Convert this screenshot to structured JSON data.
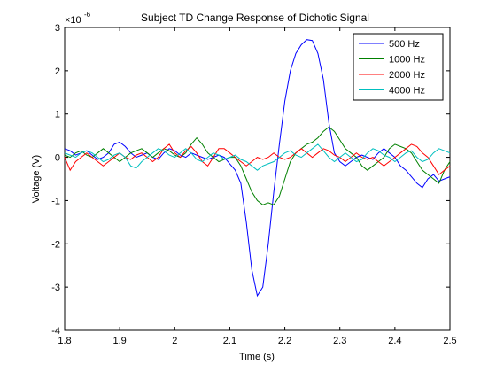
{
  "chart_data": {
    "type": "line",
    "title": "Subject TD Change Response of Dichotic Signal",
    "xlabel": "Time (s)",
    "ylabel": "Voltage (V)",
    "y_exponent_base": "×10",
    "y_exponent_power": "-6",
    "xlim": [
      1.8,
      2.5
    ],
    "ylim": [
      -4,
      3
    ],
    "xticks": [
      1.8,
      1.9,
      2.0,
      2.1,
      2.2,
      2.3,
      2.4,
      2.5
    ],
    "xtick_labels": [
      "1.8",
      "1.9",
      "2",
      "2.1",
      "2.2",
      "2.3",
      "2.4",
      "2.5"
    ],
    "yticks": [
      -4,
      -3,
      -2,
      -1,
      0,
      1,
      2,
      3
    ],
    "ytick_labels": [
      "-4",
      "-3",
      "-2",
      "-1",
      "0",
      "1",
      "2",
      "3"
    ],
    "grid": false,
    "legend_position": "top-right",
    "series": [
      {
        "name": "500 Hz",
        "color": "#0000ff",
        "x": [
          1.8,
          1.81,
          1.82,
          1.83,
          1.84,
          1.85,
          1.86,
          1.87,
          1.88,
          1.89,
          1.9,
          1.91,
          1.92,
          1.93,
          1.94,
          1.95,
          1.96,
          1.97,
          1.98,
          1.99,
          2.0,
          2.01,
          2.02,
          2.03,
          2.04,
          2.05,
          2.06,
          2.07,
          2.08,
          2.09,
          2.1,
          2.11,
          2.12,
          2.13,
          2.14,
          2.15,
          2.16,
          2.17,
          2.18,
          2.19,
          2.2,
          2.21,
          2.22,
          2.23,
          2.24,
          2.25,
          2.26,
          2.27,
          2.28,
          2.29,
          2.3,
          2.31,
          2.32,
          2.33,
          2.34,
          2.35,
          2.36,
          2.37,
          2.38,
          2.39,
          2.4,
          2.41,
          2.42,
          2.43,
          2.44,
          2.45,
          2.46,
          2.47,
          2.48,
          2.49,
          2.5
        ],
        "y": [
          0.2,
          0.15,
          0.05,
          0.1,
          0.15,
          0.05,
          -0.05,
          0.0,
          0.1,
          0.3,
          0.35,
          0.25,
          0.1,
          0.0,
          0.05,
          0.1,
          0.0,
          -0.05,
          0.1,
          0.2,
          0.15,
          0.05,
          0.0,
          0.1,
          0.05,
          0.0,
          -0.05,
          0.0,
          0.05,
          0.0,
          -0.15,
          -0.3,
          -0.6,
          -1.5,
          -2.6,
          -3.2,
          -3.0,
          -2.0,
          -0.8,
          0.3,
          1.3,
          2.0,
          2.4,
          2.6,
          2.72,
          2.7,
          2.4,
          1.8,
          0.8,
          0.1,
          -0.1,
          -0.2,
          -0.1,
          0.0,
          0.05,
          0.0,
          -0.05,
          0.1,
          0.2,
          0.1,
          0.0,
          -0.2,
          -0.3,
          -0.45,
          -0.6,
          -0.7,
          -0.5,
          -0.4,
          -0.55,
          -0.5,
          -0.45
        ]
      },
      {
        "name": "1000 Hz",
        "color": "#008000",
        "x": [
          1.8,
          1.81,
          1.82,
          1.83,
          1.84,
          1.85,
          1.86,
          1.87,
          1.88,
          1.89,
          1.9,
          1.91,
          1.92,
          1.93,
          1.94,
          1.95,
          1.96,
          1.97,
          1.98,
          1.99,
          2.0,
          2.01,
          2.02,
          2.03,
          2.04,
          2.05,
          2.06,
          2.07,
          2.08,
          2.09,
          2.1,
          2.11,
          2.12,
          2.13,
          2.14,
          2.15,
          2.16,
          2.17,
          2.18,
          2.19,
          2.2,
          2.21,
          2.22,
          2.23,
          2.24,
          2.25,
          2.26,
          2.27,
          2.28,
          2.29,
          2.3,
          2.31,
          2.32,
          2.33,
          2.34,
          2.35,
          2.36,
          2.37,
          2.38,
          2.39,
          2.4,
          2.41,
          2.42,
          2.43,
          2.44,
          2.45,
          2.46,
          2.47,
          2.48,
          2.49,
          2.5
        ],
        "y": [
          0.05,
          0.0,
          0.1,
          0.15,
          0.05,
          0.0,
          0.1,
          0.2,
          0.1,
          0.0,
          -0.1,
          0.0,
          0.1,
          0.15,
          0.2,
          0.1,
          0.0,
          0.1,
          0.2,
          0.15,
          0.05,
          0.0,
          0.1,
          0.3,
          0.45,
          0.3,
          0.1,
          0.0,
          -0.1,
          -0.05,
          0.0,
          0.0,
          -0.2,
          -0.5,
          -0.8,
          -1.0,
          -1.1,
          -1.05,
          -1.1,
          -0.9,
          -0.5,
          -0.1,
          0.1,
          0.2,
          0.3,
          0.35,
          0.45,
          0.6,
          0.7,
          0.6,
          0.4,
          0.2,
          0.1,
          0.0,
          -0.2,
          -0.3,
          -0.2,
          -0.1,
          0.0,
          0.2,
          0.3,
          0.25,
          0.2,
          0.1,
          -0.1,
          -0.3,
          -0.4,
          -0.5,
          -0.6,
          -0.3,
          -0.1
        ]
      },
      {
        "name": "2000 Hz",
        "color": "#ff0000",
        "x": [
          1.8,
          1.81,
          1.82,
          1.83,
          1.84,
          1.85,
          1.86,
          1.87,
          1.88,
          1.89,
          1.9,
          1.91,
          1.92,
          1.93,
          1.94,
          1.95,
          1.96,
          1.97,
          1.98,
          1.99,
          2.0,
          2.01,
          2.02,
          2.03,
          2.04,
          2.05,
          2.06,
          2.07,
          2.08,
          2.09,
          2.1,
          2.11,
          2.12,
          2.13,
          2.14,
          2.15,
          2.16,
          2.17,
          2.18,
          2.19,
          2.2,
          2.21,
          2.22,
          2.23,
          2.24,
          2.25,
          2.26,
          2.27,
          2.28,
          2.29,
          2.3,
          2.31,
          2.32,
          2.33,
          2.34,
          2.35,
          2.36,
          2.37,
          2.38,
          2.39,
          2.4,
          2.41,
          2.42,
          2.43,
          2.44,
          2.45,
          2.46,
          2.47,
          2.48,
          2.49,
          2.5
        ],
        "y": [
          0.0,
          -0.3,
          -0.1,
          0.0,
          0.1,
          0.0,
          -0.1,
          -0.2,
          -0.1,
          0.0,
          0.1,
          0.0,
          -0.05,
          0.05,
          0.1,
          0.0,
          -0.1,
          0.0,
          0.2,
          0.3,
          0.1,
          0.0,
          0.15,
          0.25,
          0.1,
          -0.1,
          -0.2,
          0.0,
          0.2,
          0.2,
          0.1,
          0.0,
          -0.1,
          -0.2,
          -0.1,
          0.0,
          -0.05,
          0.0,
          0.1,
          0.0,
          -0.05,
          0.0,
          0.1,
          0.2,
          0.1,
          0.0,
          0.1,
          0.2,
          0.15,
          0.05,
          0.0,
          -0.1,
          0.0,
          0.1,
          0.0,
          -0.05,
          0.0,
          -0.1,
          -0.2,
          -0.1,
          0.0,
          0.1,
          0.2,
          0.3,
          0.25,
          0.1,
          0.0,
          -0.2,
          -0.4,
          -0.3,
          -0.2
        ]
      },
      {
        "name": "4000 Hz",
        "color": "#00bfbf",
        "x": [
          1.8,
          1.81,
          1.82,
          1.83,
          1.84,
          1.85,
          1.86,
          1.87,
          1.88,
          1.89,
          1.9,
          1.91,
          1.92,
          1.93,
          1.94,
          1.95,
          1.96,
          1.97,
          1.98,
          1.99,
          2.0,
          2.01,
          2.02,
          2.03,
          2.04,
          2.05,
          2.06,
          2.07,
          2.08,
          2.09,
          2.1,
          2.11,
          2.12,
          2.13,
          2.14,
          2.15,
          2.16,
          2.17,
          2.18,
          2.19,
          2.2,
          2.21,
          2.22,
          2.23,
          2.24,
          2.25,
          2.26,
          2.27,
          2.28,
          2.29,
          2.3,
          2.31,
          2.32,
          2.33,
          2.34,
          2.35,
          2.36,
          2.37,
          2.38,
          2.39,
          2.4,
          2.41,
          2.42,
          2.43,
          2.44,
          2.45,
          2.46,
          2.47,
          2.48,
          2.49,
          2.5
        ],
        "y": [
          0.1,
          0.05,
          0.0,
          0.1,
          0.15,
          0.1,
          0.0,
          -0.1,
          -0.05,
          0.05,
          0.1,
          0.0,
          -0.2,
          -0.25,
          -0.1,
          0.0,
          0.1,
          0.2,
          0.15,
          0.05,
          0.0,
          0.1,
          0.2,
          0.1,
          -0.05,
          -0.1,
          0.0,
          0.1,
          0.05,
          -0.05,
          0.0,
          0.05,
          -0.05,
          -0.1,
          -0.2,
          -0.3,
          -0.2,
          -0.15,
          -0.1,
          0.0,
          0.1,
          0.15,
          0.05,
          0.0,
          0.1,
          0.2,
          0.3,
          0.15,
          0.0,
          -0.1,
          0.0,
          0.1,
          0.0,
          -0.1,
          -0.05,
          0.1,
          0.2,
          0.15,
          0.05,
          0.0,
          -0.1,
          0.0,
          0.1,
          0.15,
          0.0,
          -0.1,
          -0.05,
          0.1,
          0.2,
          0.15,
          0.1
        ]
      }
    ]
  }
}
